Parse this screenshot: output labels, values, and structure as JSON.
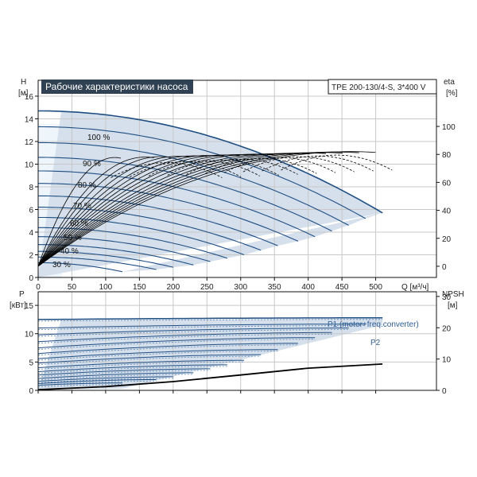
{
  "chart_data": [
    {
      "type": "line",
      "title": "Рабочие характеристики насоса",
      "model": "TPE 200-130/4-S, 3*400 V",
      "y_label_left": "H",
      "y_unit_left": "[м]",
      "y_label_right": "eta",
      "y_unit_right": "[%]",
      "x_label": "Q [м³/ч]",
      "x_ticks": [
        0,
        50,
        100,
        150,
        200,
        250,
        300,
        350,
        400,
        450,
        500
      ],
      "y_ticks_left": [
        0,
        2,
        4,
        6,
        8,
        10,
        12,
        14,
        16
      ],
      "y_ticks_right": [
        0,
        20,
        40,
        60,
        80,
        100
      ],
      "xlim": [
        0,
        590
      ],
      "ylim": [
        0,
        17.4
      ],
      "eta_lim": [
        -8,
        133
      ],
      "speed_labels": [
        "100 %",
        "90 %",
        "80 %",
        "70 %",
        "60 %",
        "50 %",
        "40 %",
        "30 %"
      ],
      "head_curves": [
        {
          "speed": 100,
          "shutoff_head": 14.7,
          "end_q": 510,
          "end_head": 5.7
        },
        {
          "speed": 95,
          "shutoff_head": 13.3,
          "end_q": 485,
          "end_head": 5.2
        },
        {
          "speed": 90,
          "shutoff_head": 11.9,
          "end_q": 460,
          "end_head": 4.6
        },
        {
          "speed": 85,
          "shutoff_head": 10.6,
          "end_q": 435,
          "end_head": 4.1
        },
        {
          "speed": 80,
          "shutoff_head": 9.4,
          "end_q": 410,
          "end_head": 3.6
        },
        {
          "speed": 75,
          "shutoff_head": 8.3,
          "end_q": 385,
          "end_head": 3.2
        },
        {
          "speed": 70,
          "shutoff_head": 7.2,
          "end_q": 355,
          "end_head": 2.8
        },
        {
          "speed": 65,
          "shutoff_head": 6.2,
          "end_q": 330,
          "end_head": 2.4
        },
        {
          "speed": 60,
          "shutoff_head": 5.3,
          "end_q": 305,
          "end_head": 2.0
        },
        {
          "speed": 55,
          "shutoff_head": 4.4,
          "end_q": 280,
          "end_head": 1.7
        },
        {
          "speed": 50,
          "shutoff_head": 3.6,
          "end_q": 255,
          "end_head": 1.4
        },
        {
          "speed": 45,
          "shutoff_head": 2.9,
          "end_q": 230,
          "end_head": 1.1
        },
        {
          "speed": 40,
          "shutoff_head": 2.3,
          "end_q": 200,
          "end_head": 0.9
        },
        {
          "speed": 35,
          "shutoff_head": 1.8,
          "end_q": 175,
          "end_head": 0.7
        },
        {
          "speed": 30,
          "shutoff_head": 1.3,
          "end_q": 125,
          "end_head": 0.5
        }
      ]
    },
    {
      "type": "line",
      "y_label_left": "P",
      "y_unit_left": "[кВт]",
      "y_label_right": "NPSH",
      "y_unit_right": "[м]",
      "y_ticks_left": [
        0,
        5,
        10,
        15
      ],
      "y_ticks_right": [
        0,
        10,
        20,
        30
      ],
      "ylim": [
        0,
        17.4
      ],
      "npsh_lim": [
        0,
        31.5
      ],
      "series_labels": [
        "P1 (motor+freq.converter)",
        "P2"
      ],
      "power_curves": [
        {
          "speed": 100,
          "p_start": 12.5,
          "p_end": 12.8,
          "end_q": 510
        },
        {
          "speed": 95,
          "p_start": 11.0,
          "p_end": 11.7,
          "end_q": 485
        },
        {
          "speed": 90,
          "p_start": 9.8,
          "p_end": 11.0,
          "end_q": 460
        },
        {
          "speed": 85,
          "p_start": 8.6,
          "p_end": 10.2,
          "end_q": 435
        },
        {
          "speed": 80,
          "p_start": 7.5,
          "p_end": 9.3,
          "end_q": 410
        },
        {
          "speed": 75,
          "p_start": 6.5,
          "p_end": 8.3,
          "end_q": 385
        },
        {
          "speed": 70,
          "p_start": 5.6,
          "p_end": 7.2,
          "end_q": 355
        },
        {
          "speed": 65,
          "p_start": 4.8,
          "p_end": 6.3,
          "end_q": 330
        },
        {
          "speed": 60,
          "p_start": 4.0,
          "p_end": 5.3,
          "end_q": 305
        },
        {
          "speed": 55,
          "p_start": 3.3,
          "p_end": 4.5,
          "end_q": 280
        },
        {
          "speed": 50,
          "p_start": 2.7,
          "p_end": 3.8,
          "end_q": 255
        },
        {
          "speed": 45,
          "p_start": 2.1,
          "p_end": 3.1,
          "end_q": 230
        },
        {
          "speed": 40,
          "p_start": 1.6,
          "p_end": 2.4,
          "end_q": 200
        },
        {
          "speed": 35,
          "p_start": 1.2,
          "p_end": 1.9,
          "end_q": 175
        },
        {
          "speed": 30,
          "p_start": 0.9,
          "p_end": 1.3,
          "end_q": 125
        }
      ],
      "npsh_curve": {
        "q": [
          0,
          100,
          200,
          300,
          400,
          510
        ],
        "npsh": [
          0.2,
          1.2,
          2.8,
          4.9,
          7.1,
          8.4
        ]
      }
    }
  ]
}
